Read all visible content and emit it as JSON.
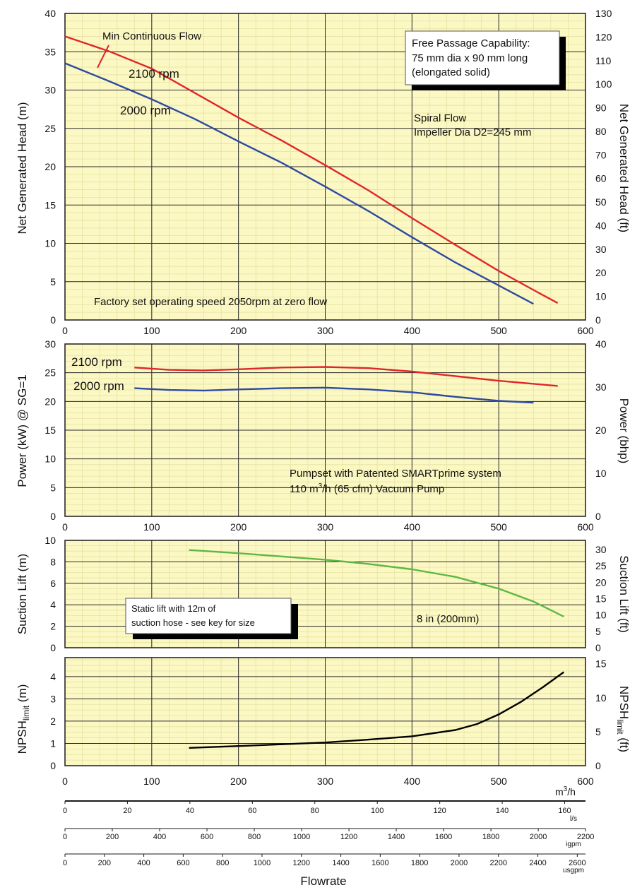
{
  "chart_data": [
    {
      "id": "head",
      "type": "line",
      "ylabel": "Net Generated Head  (m)",
      "ylabel_right": "Net Generated Head  (ft)",
      "xlim": [
        0,
        600
      ],
      "ylim": [
        0,
        40
      ],
      "y2lim": [
        0,
        130
      ],
      "x_ticks": [
        0,
        100,
        200,
        300,
        400,
        500,
        600
      ],
      "y_ticks": [
        0,
        5,
        10,
        15,
        20,
        25,
        30,
        35,
        40
      ],
      "y2_ticks": [
        0,
        10,
        20,
        30,
        40,
        50,
        60,
        70,
        80,
        90,
        100,
        110,
        120,
        130
      ],
      "grid": true,
      "series": [
        {
          "name": "2100 rpm",
          "color": "#e0262b",
          "x": [
            0,
            50,
            100,
            150,
            200,
            250,
            300,
            350,
            400,
            450,
            500,
            550,
            568
          ],
          "y": [
            37.0,
            35.1,
            32.8,
            29.6,
            26.4,
            23.4,
            20.2,
            16.9,
            13.3,
            9.8,
            6.4,
            3.3,
            2.2
          ]
        },
        {
          "name": "2000 rpm",
          "color": "#2e4aa0",
          "x": [
            0,
            50,
            100,
            150,
            200,
            250,
            300,
            350,
            400,
            450,
            500,
            540
          ],
          "y": [
            33.5,
            31.2,
            28.8,
            26.2,
            23.3,
            20.5,
            17.4,
            14.2,
            10.8,
            7.5,
            4.5,
            2.1
          ]
        }
      ],
      "min_flow_label": "Min Continuous Flow",
      "notes": {
        "free_passage_1": "Free Passage Capability:",
        "free_passage_2": "75 mm dia x 90 mm long",
        "free_passage_3": "(elongated solid)",
        "spiral_1": "Spiral Flow",
        "spiral_2": "Impeller Dia D2=245 mm",
        "factory": "Factory set operating speed 2050rpm at zero flow"
      }
    },
    {
      "id": "power",
      "type": "line",
      "ylabel": "Power (kW) @ SG=1",
      "ylabel_right": "Power (bhp)",
      "xlim": [
        0,
        600
      ],
      "ylim": [
        0,
        30
      ],
      "y2lim": [
        0,
        40
      ],
      "x_ticks": [
        0,
        100,
        200,
        300,
        400,
        500,
        600
      ],
      "y_ticks": [
        0,
        5,
        10,
        15,
        20,
        25,
        30
      ],
      "y2_ticks": [
        0,
        10,
        20,
        30,
        40
      ],
      "grid": true,
      "series": [
        {
          "name": "2100 rpm",
          "color": "#e0262b",
          "x": [
            80,
            120,
            160,
            200,
            250,
            300,
            350,
            400,
            450,
            500,
            568
          ],
          "y": [
            25.9,
            25.5,
            25.4,
            25.6,
            25.9,
            26.0,
            25.8,
            25.2,
            24.4,
            23.6,
            22.7
          ]
        },
        {
          "name": "2000 rpm",
          "color": "#2e4aa0",
          "x": [
            80,
            120,
            160,
            200,
            250,
            300,
            350,
            400,
            450,
            500,
            540
          ],
          "y": [
            22.3,
            22.0,
            21.9,
            22.1,
            22.3,
            22.4,
            22.1,
            21.6,
            20.8,
            20.1,
            19.8
          ]
        }
      ],
      "notes": {
        "smartprime_1": "Pumpset with Patented SMARTprime system",
        "smartprime_2a": "110 m",
        "smartprime_2sup": "3",
        "smartprime_2b": "/h (65 cfm) Vacuum Pump"
      }
    },
    {
      "id": "suction",
      "type": "line",
      "ylabel": "Suction Lift (m)",
      "ylabel_right": "Suction Lift (ft)",
      "xlim": [
        0,
        600
      ],
      "ylim": [
        0,
        10
      ],
      "y2lim": [
        0,
        32.8
      ],
      "x_ticks": [
        0,
        100,
        200,
        300,
        400,
        500,
        600
      ],
      "y_ticks": [
        0,
        2,
        4,
        6,
        8,
        10
      ],
      "y2_ticks": [
        0,
        5,
        10,
        15,
        20,
        25,
        30
      ],
      "grid": true,
      "series": [
        {
          "name": "8 in (200mm)",
          "color": "#5cb844",
          "x": [
            143,
            200,
            250,
            300,
            350,
            400,
            450,
            500,
            540,
            575
          ],
          "y": [
            9.1,
            8.8,
            8.5,
            8.2,
            7.8,
            7.3,
            6.6,
            5.5,
            4.3,
            2.9
          ]
        }
      ],
      "notes": {
        "static_1": "Static lift with 12m of",
        "static_2": "suction hose - see key for size"
      }
    },
    {
      "id": "npsh",
      "type": "line",
      "ylabel_main": "NPSH",
      "ylabel_sub": "limit",
      "ylabel_unit": " (m)",
      "ylabel_right_unit": " (ft)",
      "xlim": [
        0,
        600
      ],
      "ylim": [
        0,
        4.85
      ],
      "y2lim": [
        0,
        15.9
      ],
      "x_ticks": [
        0,
        100,
        200,
        300,
        400,
        500,
        600
      ],
      "y_ticks": [
        0,
        1,
        2,
        3,
        4
      ],
      "y2_ticks": [
        0,
        5,
        10,
        15
      ],
      "grid": true,
      "series": [
        {
          "name": "NPSHlimit",
          "color": "#000000",
          "x": [
            143,
            200,
            250,
            300,
            350,
            400,
            450,
            475,
            500,
            525,
            550,
            575
          ],
          "y": [
            0.8,
            0.88,
            0.96,
            1.04,
            1.17,
            1.32,
            1.6,
            1.87,
            2.3,
            2.85,
            3.5,
            4.2
          ]
        }
      ],
      "x_unit_main": "m",
      "x_unit_sup": "3",
      "x_unit_tail": "/h"
    }
  ],
  "flow_scales": [
    {
      "unit": "l/s",
      "ticks": [
        0,
        20,
        40,
        60,
        80,
        100,
        120,
        140,
        160
      ],
      "max": 166.67
    },
    {
      "unit": "igpm",
      "ticks": [
        0,
        200,
        400,
        600,
        800,
        1000,
        1200,
        1400,
        1600,
        1800,
        2000,
        2200
      ],
      "max": 2199.69
    },
    {
      "unit": "usgpm",
      "ticks": [
        0,
        200,
        400,
        600,
        800,
        1000,
        1200,
        1400,
        1600,
        1800,
        2000,
        2200,
        2400,
        2600
      ],
      "max": 2641.72
    }
  ],
  "xlabel": "Flowrate",
  "colors": {
    "grid_fill": "#fbf8c4",
    "minor_grid": "#e6e2a2",
    "major_grid": "#2a2a2a"
  }
}
